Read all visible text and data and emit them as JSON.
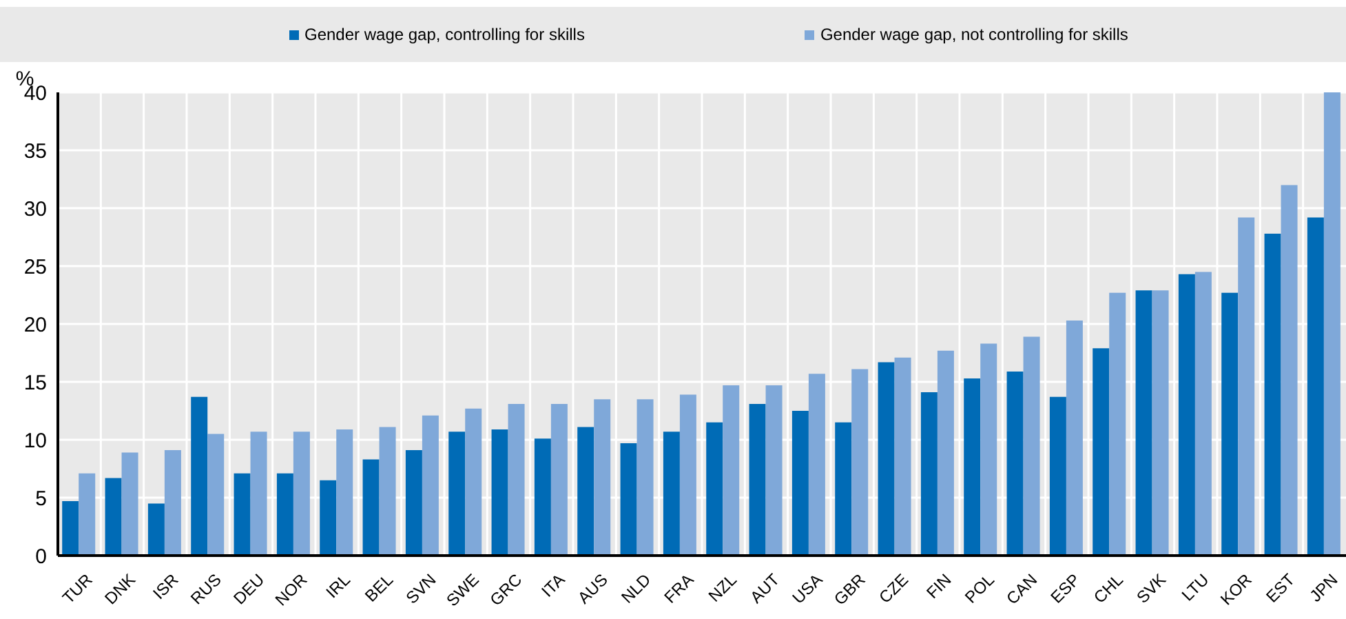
{
  "chart_data": {
    "type": "bar",
    "ylabel": "%",
    "categories": [
      "TUR",
      "DNK",
      "ISR",
      "RUS",
      "DEU",
      "NOR",
      "IRL",
      "BEL",
      "SVN",
      "SWE",
      "GRC",
      "ITA",
      "AUS",
      "NLD",
      "FRA",
      "NZL",
      "AUT",
      "USA",
      "GBR",
      "CZE",
      "FIN",
      "POL",
      "CAN",
      "ESP",
      "CHL",
      "SVK",
      "LTU",
      "KOR",
      "EST",
      "JPN"
    ],
    "series": [
      {
        "name": "Gender wage gap, controlling for skills",
        "color": "#006bb6",
        "values": [
          4.7,
          6.7,
          4.5,
          13.7,
          7.1,
          7.1,
          6.5,
          8.3,
          9.1,
          10.7,
          10.9,
          10.1,
          11.1,
          9.7,
          10.7,
          11.5,
          13.1,
          12.5,
          11.5,
          16.7,
          14.1,
          15.3,
          15.9,
          13.7,
          17.9,
          22.9,
          24.3,
          22.7,
          27.8,
          29.2
        ]
      },
      {
        "name": "Gender wage gap, not controlling for skills",
        "color": "#7fa8d9",
        "values": [
          7.1,
          8.9,
          9.1,
          10.5,
          10.7,
          10.7,
          10.9,
          11.1,
          12.1,
          12.7,
          13.1,
          13.1,
          13.5,
          13.5,
          13.9,
          14.7,
          14.7,
          15.7,
          16.1,
          17.1,
          17.7,
          18.3,
          18.9,
          20.3,
          22.7,
          22.9,
          24.5,
          29.2,
          32.0,
          40.0
        ]
      }
    ],
    "ylim": [
      0,
      40
    ],
    "yticks": [
      0,
      5,
      10,
      15,
      20,
      25,
      30,
      35,
      40
    ],
    "grid": true,
    "legend": "top"
  }
}
